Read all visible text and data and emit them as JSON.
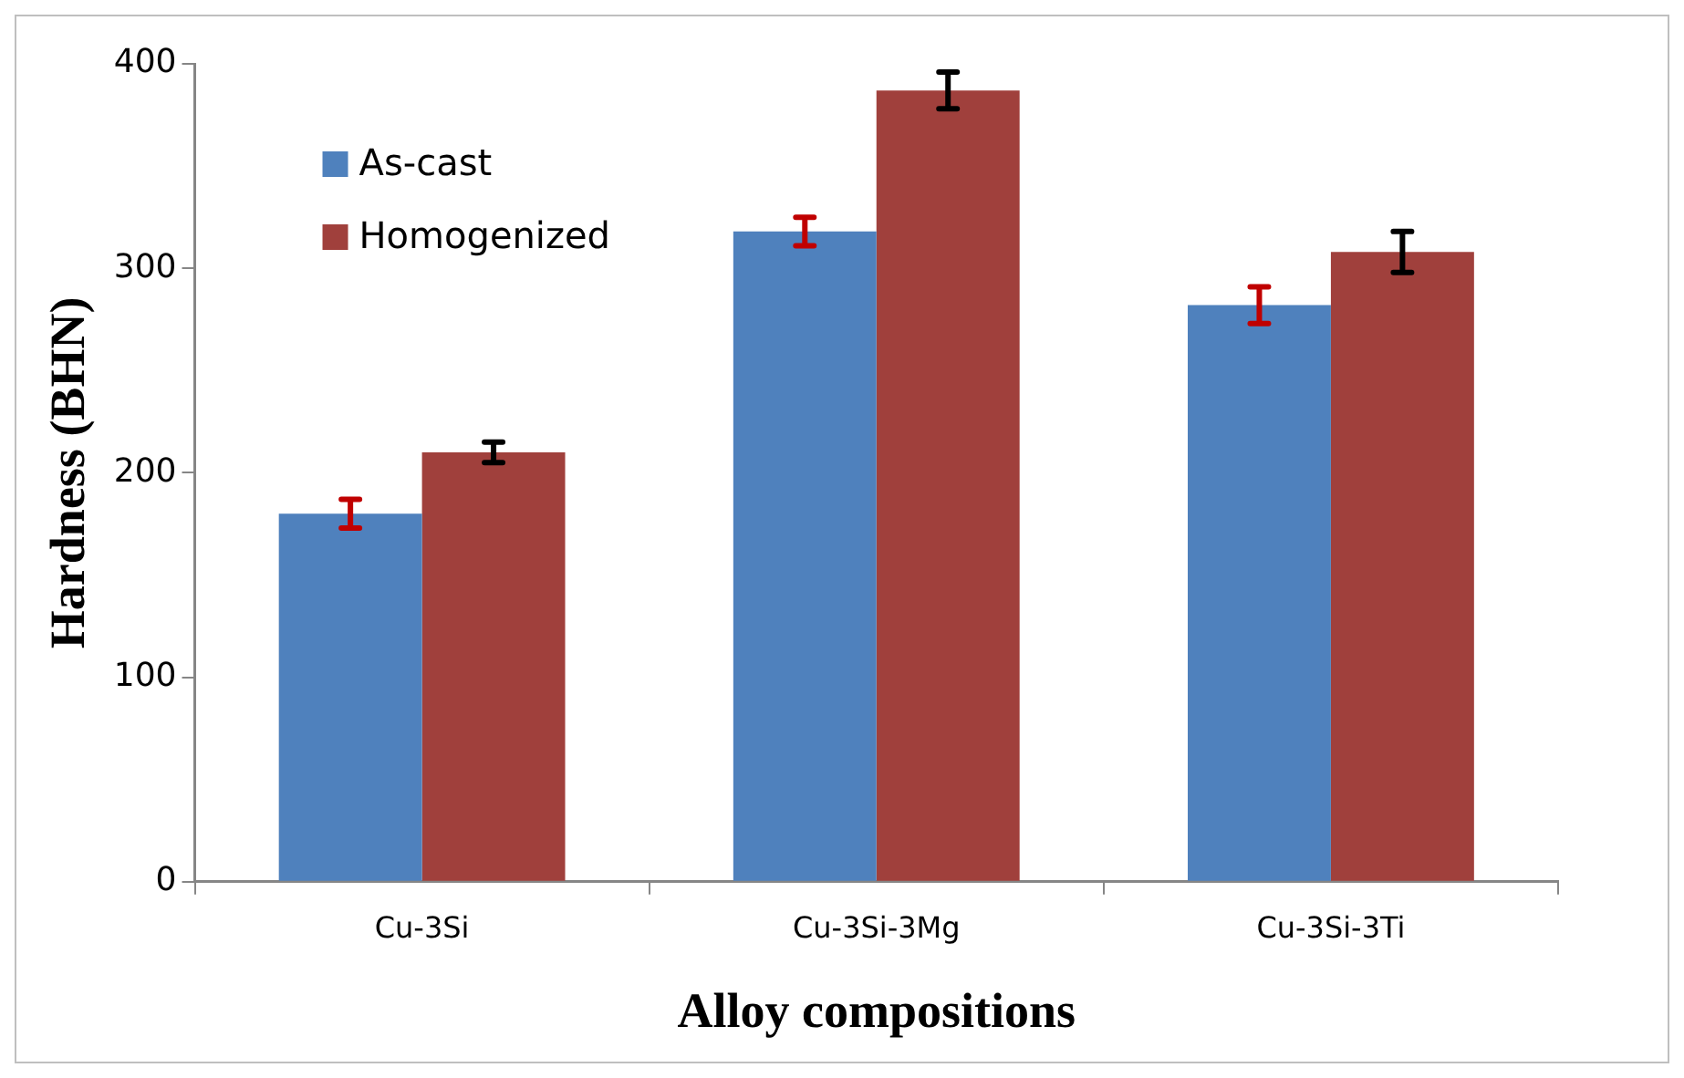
{
  "chart_data": {
    "type": "bar",
    "xlabel": "Alloy compositions",
    "ylabel": "Hardness (BHN)",
    "categories": [
      "Cu-3Si",
      "Cu-3Si-3Mg",
      "Cu-3Si-3Ti"
    ],
    "series": [
      {
        "name": "As-cast",
        "color": "#4f81bd",
        "values": [
          180,
          318,
          282
        ],
        "errors": [
          7,
          7,
          9
        ]
      },
      {
        "name": "Homogenized",
        "color": "#a0403c",
        "values": [
          210,
          387,
          308
        ],
        "errors": [
          5,
          9,
          10
        ]
      }
    ],
    "ylim": [
      0,
      400
    ],
    "yticks": [
      0,
      100,
      200,
      300,
      400
    ],
    "grid": false,
    "legend": "top left"
  }
}
